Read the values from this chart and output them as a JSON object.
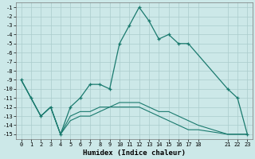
{
  "xlabel": "Humidex (Indice chaleur)",
  "background_color": "#cce8e8",
  "grid_color": "#aacccc",
  "line_color": "#1a7a6e",
  "ylim": [
    -15.5,
    -0.5
  ],
  "xlim": [
    -0.5,
    23.5
  ],
  "yticks": [
    -1,
    -2,
    -3,
    -4,
    -5,
    -6,
    -7,
    -8,
    -9,
    -10,
    -11,
    -12,
    -13,
    -14,
    -15
  ],
  "xticks": [
    0,
    1,
    2,
    3,
    4,
    5,
    6,
    7,
    8,
    9,
    10,
    11,
    12,
    13,
    14,
    15,
    16,
    17,
    18,
    21,
    22,
    23
  ],
  "line1_x": [
    0,
    1,
    2,
    3,
    4,
    5,
    6,
    7,
    8,
    9,
    10,
    11,
    12,
    13,
    14,
    15,
    16,
    17,
    21,
    22,
    23
  ],
  "line1_y": [
    -9,
    -11,
    -13,
    -12,
    -15,
    -12,
    -11,
    -9.5,
    -9.5,
    -10,
    -5,
    -3,
    -1,
    -2.5,
    -4.5,
    -4,
    -5,
    -5,
    -10,
    -11,
    -15
  ],
  "line2_x": [
    0,
    1,
    2,
    3,
    4,
    5,
    6,
    7,
    8,
    9,
    10,
    11,
    12,
    13,
    14,
    15,
    16,
    17,
    18,
    21,
    22,
    23
  ],
  "line2_y": [
    -9,
    -11,
    -13,
    -12,
    -15,
    -13,
    -12.5,
    -12.5,
    -12,
    -12,
    -11.5,
    -11.5,
    -11.5,
    -12,
    -12.5,
    -12.5,
    -13,
    -13.5,
    -14,
    -15,
    -15,
    -15
  ],
  "line3_x": [
    0,
    1,
    2,
    3,
    4,
    5,
    6,
    7,
    8,
    9,
    10,
    11,
    12,
    13,
    14,
    15,
    16,
    17,
    18,
    21,
    22,
    23
  ],
  "line3_y": [
    -9,
    -11,
    -13,
    -12,
    -15,
    -13.5,
    -13,
    -13,
    -12.5,
    -12,
    -12,
    -12,
    -12,
    -12.5,
    -13,
    -13.5,
    -14,
    -14.5,
    -14.5,
    -15,
    -15,
    -15
  ]
}
